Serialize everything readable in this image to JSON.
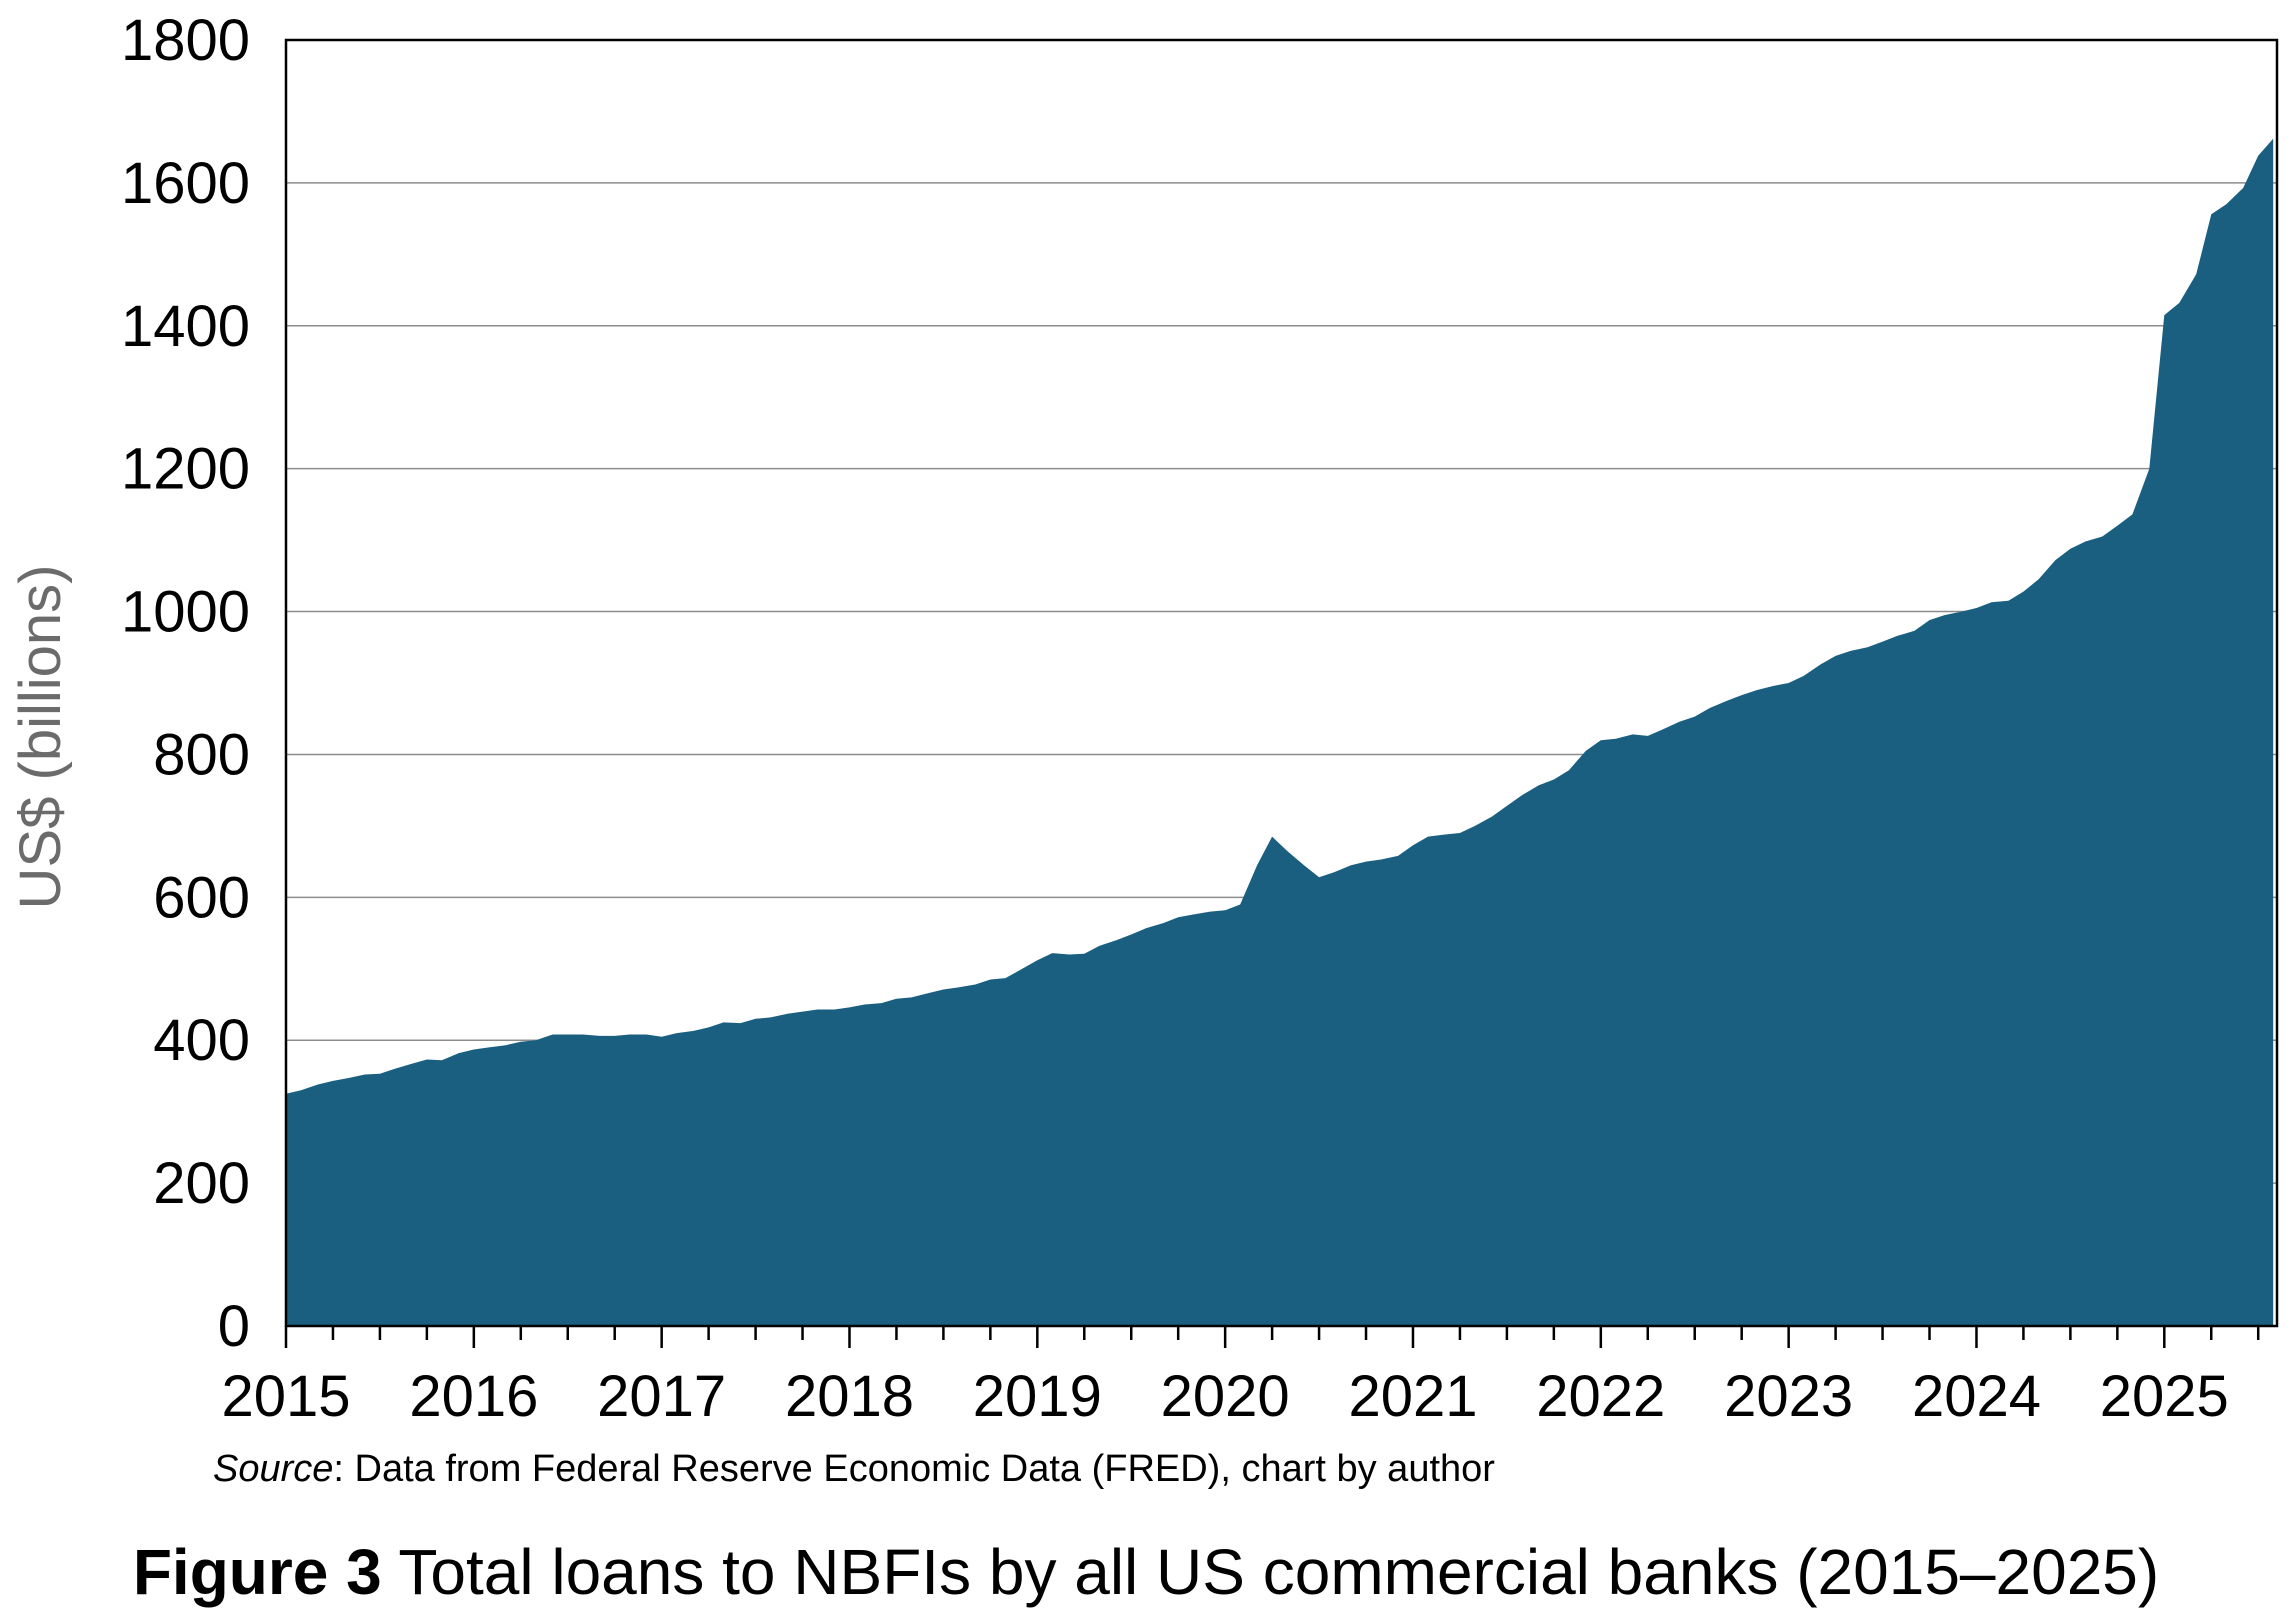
{
  "source": {
    "label": "Source",
    "text": ": Data from Federal Reserve Economic Data (FRED), chart by author"
  },
  "caption": {
    "figure_number": "Figure 3",
    "title": " Total loans to NBFIs by all US commercial banks (2015–2025)"
  },
  "chart_data": {
    "type": "area",
    "title": "",
    "xlabel": "",
    "ylabel": "US$ (billions)",
    "ylim": [
      0,
      1800
    ],
    "xlim": [
      2015.0,
      2025.6
    ],
    "yticks": [
      0,
      200,
      400,
      600,
      800,
      1000,
      1200,
      1400,
      1600,
      1800
    ],
    "xticks": [
      "2015",
      "2016",
      "2017",
      "2018",
      "2019",
      "2020",
      "2021",
      "2022",
      "2023",
      "2024",
      "2025"
    ],
    "grid": true,
    "fill_color": "#1a5f80",
    "series": [
      {
        "x": [
          2015.0,
          2015.08,
          2015.17,
          2015.25,
          2015.33,
          2015.42,
          2015.5,
          2015.58,
          2015.67,
          2015.75,
          2015.83,
          2015.92,
          2016.0,
          2016.08,
          2016.17,
          2016.25,
          2016.33,
          2016.42,
          2016.5,
          2016.58,
          2016.67,
          2016.75,
          2016.83,
          2016.92,
          2017.0,
          2017.08,
          2017.17,
          2017.25,
          2017.33,
          2017.42,
          2017.5,
          2017.58,
          2017.67,
          2017.75,
          2017.83,
          2017.92,
          2018.0,
          2018.08,
          2018.17,
          2018.25,
          2018.33,
          2018.42,
          2018.5,
          2018.58,
          2018.67,
          2018.75,
          2018.83,
          2018.92,
          2019.0,
          2019.08,
          2019.17,
          2019.25,
          2019.33,
          2019.42,
          2019.5,
          2019.58,
          2019.67,
          2019.75,
          2019.83,
          2019.92,
          2020.0,
          2020.08,
          2020.17,
          2020.25,
          2020.33,
          2020.42,
          2020.5,
          2020.58,
          2020.67,
          2020.75,
          2020.83,
          2020.92,
          2021.0,
          2021.08,
          2021.17,
          2021.25,
          2021.33,
          2021.42,
          2021.5,
          2021.58,
          2021.67,
          2021.75,
          2021.83,
          2021.92,
          2022.0,
          2022.08,
          2022.17,
          2022.25,
          2022.33,
          2022.42,
          2022.5,
          2022.58,
          2022.67,
          2022.75,
          2022.83,
          2022.92,
          2023.0,
          2023.08,
          2023.17,
          2023.25,
          2023.33,
          2023.42,
          2023.5,
          2023.58,
          2023.67,
          2023.75,
          2023.83,
          2023.92,
          2024.0,
          2024.08,
          2024.17,
          2024.25,
          2024.33,
          2024.42,
          2024.5,
          2024.58,
          2024.67,
          2024.75,
          2024.83,
          2024.92,
          2025.0,
          2025.08,
          2025.17,
          2025.25,
          2025.33,
          2025.42,
          2025.5,
          2025.58
        ],
        "y": [
          325,
          330,
          338,
          343,
          347,
          352,
          353,
          360,
          367,
          373,
          372,
          382,
          387,
          390,
          393,
          398,
          400,
          408,
          408,
          408,
          406,
          406,
          408,
          408,
          405,
          410,
          413,
          418,
          425,
          424,
          430,
          432,
          437,
          440,
          443,
          443,
          446,
          450,
          452,
          458,
          460,
          466,
          471,
          474,
          478,
          485,
          487,
          500,
          512,
          522,
          520,
          521,
          532,
          540,
          548,
          557,
          564,
          572,
          576,
          580,
          582,
          590,
          645,
          685,
          665,
          645,
          628,
          635,
          645,
          650,
          653,
          658,
          673,
          685,
          688,
          690,
          700,
          713,
          728,
          743,
          757,
          765,
          778,
          805,
          820,
          822,
          828,
          826,
          835,
          846,
          853,
          865,
          875,
          883,
          890,
          896,
          900,
          910,
          926,
          938,
          945,
          950,
          958,
          966,
          973,
          988,
          995,
          1000,
          1005,
          1013,
          1015,
          1028,
          1045,
          1072,
          1088,
          1098,
          1105,
          1120,
          1136,
          1200,
          1415,
          1432,
          1472,
          1556,
          1570,
          1593,
          1638,
          1662
        ]
      }
    ]
  }
}
